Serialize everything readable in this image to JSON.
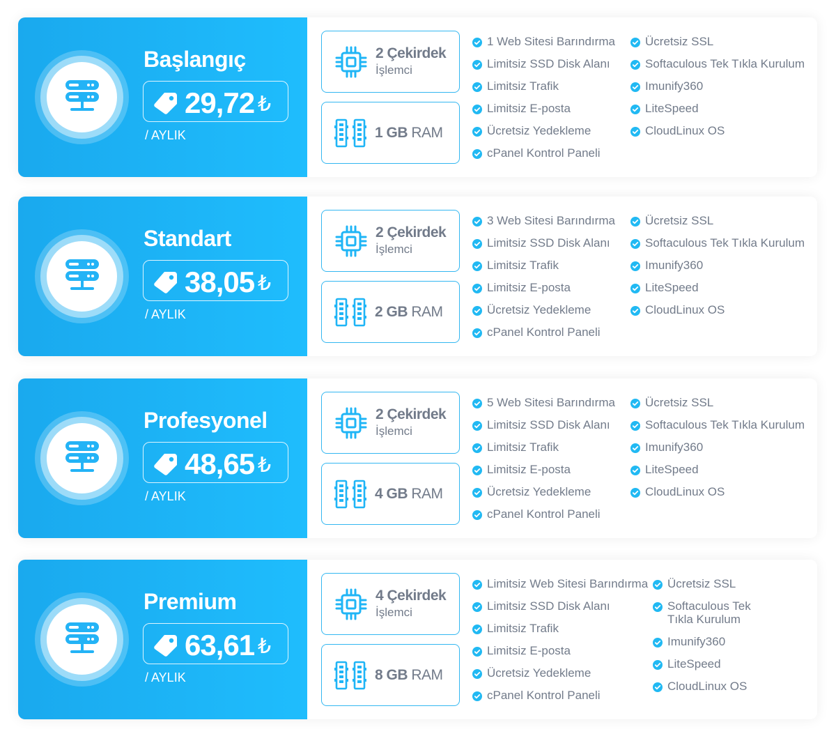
{
  "colors": {
    "accent": "#1fb5f6",
    "text_muted": "#727b8a",
    "check": "#21b9f3"
  },
  "icons": {
    "plan": "server-icon",
    "price": "price-tag-icon",
    "cpu": "cpu-chip-icon",
    "ram": "ram-module-icon",
    "feature": "check-circle-icon"
  },
  "plans": [
    {
      "name": "Başlangıç",
      "price": "29,72",
      "currency": "₺",
      "period": "/ AYLIK",
      "cpu_main": "2 Çekirdek",
      "cpu_sub": "İşlemci",
      "ram_amount": "1 GB",
      "ram_unit": "RAM",
      "features_left": [
        "1 Web Sitesi Barındırma",
        "Limitsiz SSD Disk Alanı",
        "Limitsiz Trafik",
        "Limitsiz E-posta",
        "Ücretsiz Yedekleme",
        "cPanel Kontrol Paneli"
      ],
      "features_right": [
        "Ücretsiz SSL",
        "Softaculous Tek Tıkla Kurulum",
        "Imunify360",
        "LiteSpeed",
        "CloudLinux OS"
      ]
    },
    {
      "name": "Standart",
      "price": "38,05",
      "currency": "₺",
      "period": "/ AYLIK",
      "cpu_main": "2 Çekirdek",
      "cpu_sub": "İşlemci",
      "ram_amount": "2 GB",
      "ram_unit": "RAM",
      "features_left": [
        "3 Web Sitesi Barındırma",
        "Limitsiz SSD Disk Alanı",
        "Limitsiz Trafik",
        "Limitsiz E-posta",
        "Ücretsiz Yedekleme",
        "cPanel Kontrol Paneli"
      ],
      "features_right": [
        "Ücretsiz SSL",
        "Softaculous Tek Tıkla Kurulum",
        "Imunify360",
        "LiteSpeed",
        "CloudLinux OS"
      ]
    },
    {
      "name": "Profesyonel",
      "price": "48,65",
      "currency": "₺",
      "period": "/ AYLIK",
      "cpu_main": "2 Çekirdek",
      "cpu_sub": "İşlemci",
      "ram_amount": "4 GB",
      "ram_unit": "RAM",
      "features_left": [
        "5 Web Sitesi Barındırma",
        "Limitsiz SSD Disk Alanı",
        "Limitsiz Trafik",
        "Limitsiz E-posta",
        "Ücretsiz Yedekleme",
        "cPanel Kontrol Paneli"
      ],
      "features_right": [
        "Ücretsiz SSL",
        "Softaculous Tek Tıkla Kurulum",
        "Imunify360",
        "LiteSpeed",
        "CloudLinux OS"
      ]
    },
    {
      "name": "Premium",
      "price": "63,61",
      "currency": "₺",
      "period": "/ AYLIK",
      "cpu_main": "4 Çekirdek",
      "cpu_sub": "İşlemci",
      "ram_amount": "8 GB",
      "ram_unit": "RAM",
      "features_left": [
        "Limitsiz Web Sitesi Barındırma",
        "Limitsiz SSD Disk Alanı",
        "Limitsiz Trafik",
        "Limitsiz E-posta",
        "Ücretsiz Yedekleme",
        "cPanel Kontrol Paneli"
      ],
      "features_right": [
        "Ücretsiz SSL",
        "Softaculous Tek Tıkla Kurulum",
        "Imunify360",
        "LiteSpeed",
        "CloudLinux OS"
      ]
    }
  ]
}
